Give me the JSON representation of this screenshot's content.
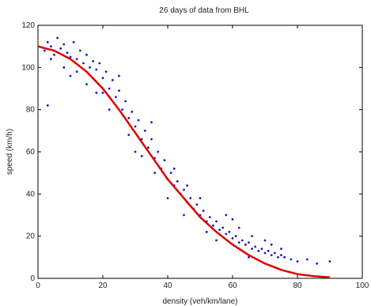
{
  "chart_data": {
    "type": "scatter",
    "title": "26 days of data from BHL",
    "xlabel": "density (veh/km/lane)",
    "ylabel": "speed (km/h)",
    "xlim": [
      0,
      100
    ],
    "ylim": [
      0,
      120
    ],
    "x_ticks": [
      0,
      20,
      40,
      60,
      80,
      100
    ],
    "y_ticks": [
      0,
      20,
      40,
      60,
      80,
      100,
      120
    ],
    "grid": false,
    "series": [
      {
        "kind": "scatter",
        "color": "#1a1acc",
        "points": [
          [
            2,
            108
          ],
          [
            3,
            112
          ],
          [
            4,
            110
          ],
          [
            5,
            106
          ],
          [
            6,
            114
          ],
          [
            7,
            109
          ],
          [
            8,
            111
          ],
          [
            9,
            107
          ],
          [
            10,
            105
          ],
          [
            11,
            112
          ],
          [
            12,
            104
          ],
          [
            13,
            108
          ],
          [
            14,
            102
          ],
          [
            15,
            106
          ],
          [
            16,
            100
          ],
          [
            17,
            103
          ],
          [
            18,
            99
          ],
          [
            19,
            102
          ],
          [
            20,
            95
          ],
          [
            21,
            98
          ],
          [
            22,
            90
          ],
          [
            23,
            94
          ],
          [
            24,
            86
          ],
          [
            25,
            89
          ],
          [
            26,
            80
          ],
          [
            27,
            84
          ],
          [
            28,
            76
          ],
          [
            29,
            79
          ],
          [
            30,
            72
          ],
          [
            31,
            75
          ],
          [
            32,
            66
          ],
          [
            33,
            70
          ],
          [
            34,
            62
          ],
          [
            35,
            66
          ],
          [
            36,
            57
          ],
          [
            37,
            60
          ],
          [
            38,
            52
          ],
          [
            39,
            56
          ],
          [
            40,
            47
          ],
          [
            41,
            50
          ],
          [
            42,
            44
          ],
          [
            43,
            46
          ],
          [
            44,
            40
          ],
          [
            45,
            42
          ],
          [
            46,
            36
          ],
          [
            47,
            38
          ],
          [
            48,
            33
          ],
          [
            49,
            35
          ],
          [
            50,
            30
          ],
          [
            51,
            32
          ],
          [
            52,
            27
          ],
          [
            53,
            29
          ],
          [
            54,
            25
          ],
          [
            55,
            27
          ],
          [
            56,
            23
          ],
          [
            57,
            24
          ],
          [
            58,
            21
          ],
          [
            59,
            22
          ],
          [
            60,
            19
          ],
          [
            61,
            20
          ],
          [
            62,
            17
          ],
          [
            63,
            18
          ],
          [
            64,
            16
          ],
          [
            65,
            17
          ],
          [
            66,
            14
          ],
          [
            67,
            15
          ],
          [
            68,
            13
          ],
          [
            69,
            14
          ],
          [
            70,
            12
          ],
          [
            71,
            13
          ],
          [
            72,
            11
          ],
          [
            73,
            12
          ],
          [
            74,
            10
          ],
          [
            75,
            11
          ],
          [
            76,
            10
          ],
          [
            78,
            9
          ],
          [
            80,
            8
          ],
          [
            83,
            9
          ],
          [
            86,
            7
          ],
          [
            90,
            8
          ],
          [
            3,
            82
          ],
          [
            10,
            96
          ],
          [
            15,
            92
          ],
          [
            20,
            88
          ],
          [
            25,
            96
          ],
          [
            30,
            60
          ],
          [
            35,
            74
          ],
          [
            40,
            38
          ],
          [
            45,
            30
          ],
          [
            50,
            38
          ],
          [
            55,
            18
          ],
          [
            60,
            28
          ],
          [
            65,
            10
          ],
          [
            70,
            18
          ],
          [
            75,
            14
          ],
          [
            4,
            104
          ],
          [
            8,
            100
          ],
          [
            12,
            98
          ],
          [
            18,
            88
          ],
          [
            22,
            80
          ],
          [
            28,
            68
          ],
          [
            32,
            58
          ],
          [
            36,
            50
          ],
          [
            42,
            52
          ],
          [
            46,
            44
          ],
          [
            52,
            22
          ],
          [
            58,
            30
          ],
          [
            62,
            24
          ],
          [
            66,
            20
          ],
          [
            72,
            16
          ]
        ]
      },
      {
        "kind": "fit",
        "color": "#e00000",
        "points": [
          [
            0,
            110
          ],
          [
            5,
            108
          ],
          [
            10,
            104
          ],
          [
            15,
            98
          ],
          [
            20,
            90
          ],
          [
            25,
            80
          ],
          [
            30,
            69
          ],
          [
            35,
            58
          ],
          [
            40,
            47
          ],
          [
            45,
            38
          ],
          [
            50,
            29
          ],
          [
            55,
            22
          ],
          [
            60,
            16
          ],
          [
            65,
            11
          ],
          [
            70,
            7
          ],
          [
            75,
            4
          ],
          [
            80,
            2
          ],
          [
            85,
            1
          ],
          [
            90,
            0.5
          ]
        ]
      }
    ]
  }
}
